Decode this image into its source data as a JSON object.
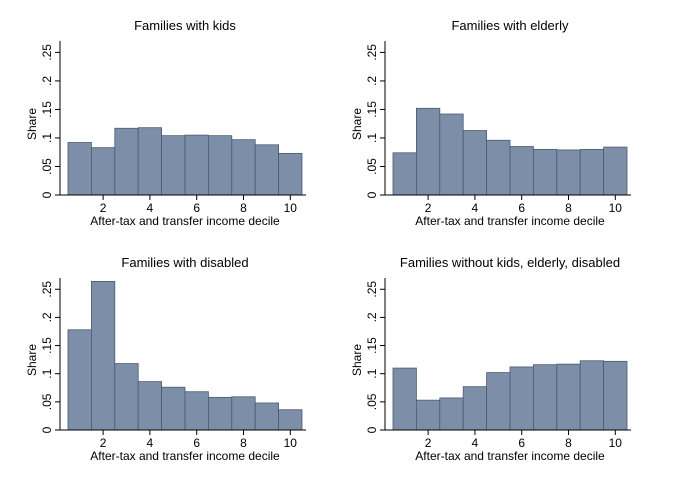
{
  "chart_data": [
    {
      "type": "bar",
      "title": "Families with kids",
      "xlabel": "After-tax and transfer income decile",
      "ylabel": "Share",
      "x": [
        1,
        2,
        3,
        4,
        5,
        6,
        7,
        8,
        9,
        10
      ],
      "values": [
        0.092,
        0.083,
        0.117,
        0.118,
        0.104,
        0.105,
        0.104,
        0.097,
        0.088,
        0.073
      ],
      "xticks": [
        "2",
        "4",
        "6",
        "8",
        "10"
      ],
      "yticks": [
        "0",
        ".05",
        ".1",
        ".15",
        ".2",
        ".25"
      ],
      "ylim": [
        0,
        0.27
      ],
      "grid": false
    },
    {
      "type": "bar",
      "title": "Families with elderly",
      "xlabel": "After-tax and transfer income decile",
      "ylabel": "Share",
      "x": [
        1,
        2,
        3,
        4,
        5,
        6,
        7,
        8,
        9,
        10
      ],
      "values": [
        0.074,
        0.152,
        0.142,
        0.113,
        0.096,
        0.085,
        0.08,
        0.079,
        0.08,
        0.084
      ],
      "xticks": [
        "2",
        "4",
        "6",
        "8",
        "10"
      ],
      "yticks": [
        "0",
        ".05",
        ".1",
        ".15",
        ".2",
        ".25"
      ],
      "ylim": [
        0,
        0.27
      ],
      "grid": false
    },
    {
      "type": "bar",
      "title": "Families with disabled",
      "xlabel": "After-tax and transfer income decile",
      "ylabel": "Share",
      "x": [
        1,
        2,
        3,
        4,
        5,
        6,
        7,
        8,
        9,
        10
      ],
      "values": [
        0.178,
        0.264,
        0.118,
        0.086,
        0.076,
        0.068,
        0.058,
        0.059,
        0.048,
        0.036
      ],
      "xticks": [
        "2",
        "4",
        "6",
        "8",
        "10"
      ],
      "yticks": [
        "0",
        ".05",
        ".1",
        ".15",
        ".2",
        ".25"
      ],
      "ylim": [
        0,
        0.27
      ],
      "grid": false
    },
    {
      "type": "bar",
      "title": "Families without kids, elderly, disabled",
      "xlabel": "After-tax and transfer income decile",
      "ylabel": "Share",
      "x": [
        1,
        2,
        3,
        4,
        5,
        6,
        7,
        8,
        9,
        10
      ],
      "values": [
        0.11,
        0.053,
        0.057,
        0.077,
        0.102,
        0.112,
        0.116,
        0.117,
        0.123,
        0.122
      ],
      "xticks": [
        "2",
        "4",
        "6",
        "8",
        "10"
      ],
      "yticks": [
        "0",
        ".05",
        ".1",
        ".15",
        ".2",
        ".25"
      ],
      "ylim": [
        0,
        0.27
      ],
      "grid": false
    }
  ],
  "colors": {
    "bar_fill": "#7d8fa8",
    "bar_stroke": "#4a5a70",
    "axis": "#000000"
  }
}
